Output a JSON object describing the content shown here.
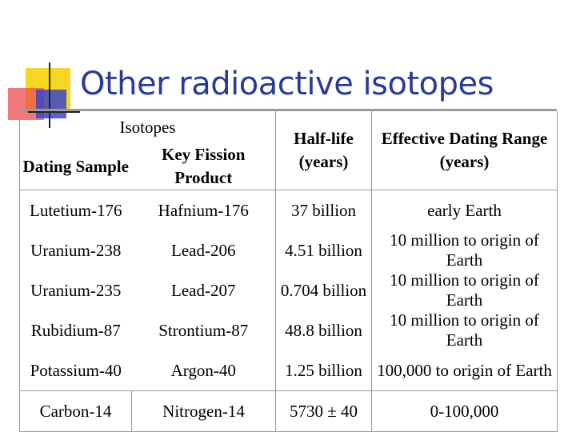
{
  "slide": {
    "title": "Other radioactive isotopes"
  },
  "table": {
    "group_header": "Isotopes",
    "headers": {
      "dating_sample": "Dating Sample",
      "key_fission_product": "Key Fission Product",
      "half_life": "Half-life (years)",
      "dating_range": "Effective Dating Range (years)"
    },
    "rows": [
      {
        "sample": "Lutetium-176",
        "product": "Hafnium-176",
        "half_life": "37 billion",
        "range": "early Earth"
      },
      {
        "sample": "Uranium-238",
        "product": "Lead-206",
        "half_life": "4.51 billion",
        "range": "10 million to origin of Earth"
      },
      {
        "sample": "Uranium-235",
        "product": "Lead-207",
        "half_life": "0.704 billion",
        "range": "10 million to origin of Earth"
      },
      {
        "sample": "Rubidium-87",
        "product": "Strontium-87",
        "half_life": "48.8 billion",
        "range": "10 million to origin of Earth"
      },
      {
        "sample": "Potassium-40",
        "product": "Argon-40",
        "half_life": "1.25 billion",
        "range": "100,000 to origin of Earth"
      },
      {
        "sample": "Carbon-14",
        "product": "Nitrogen-14",
        "half_life": "5730 ± 40",
        "range": "0-100,000"
      }
    ]
  },
  "colors": {
    "title": "#2a3a9a",
    "logo_yellow": "#f5d623",
    "logo_red": "#ee4c4c",
    "logo_blue": "#3b46c8",
    "rule": "#9a9a9a"
  }
}
